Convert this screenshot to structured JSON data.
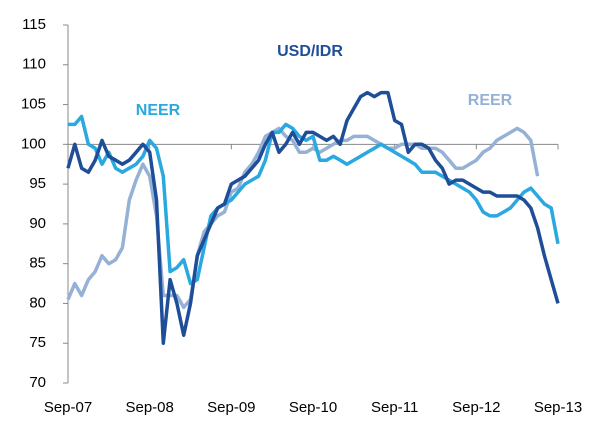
{
  "chart_data": {
    "type": "line",
    "categories": [
      "Sep-07",
      null,
      null,
      null,
      null,
      null,
      null,
      null,
      null,
      null,
      null,
      null,
      "Sep-08",
      null,
      null,
      null,
      null,
      null,
      null,
      null,
      null,
      null,
      null,
      null,
      "Sep-09",
      null,
      null,
      null,
      null,
      null,
      null,
      null,
      null,
      null,
      null,
      null,
      "Sep-10",
      null,
      null,
      null,
      null,
      null,
      null,
      null,
      null,
      null,
      null,
      null,
      "Sep-11",
      null,
      null,
      null,
      null,
      null,
      null,
      null,
      null,
      null,
      null,
      null,
      "Sep-12",
      null,
      null,
      null,
      null,
      null,
      null,
      null,
      null,
      null,
      null,
      null,
      "Sep-13"
    ],
    "series": [
      {
        "name": "USD/IDR",
        "color": "#1f4e99",
        "values": [
          97,
          100,
          97,
          96.5,
          98,
          100.5,
          98.5,
          98,
          97.5,
          98,
          99,
          100,
          99,
          93,
          75,
          83,
          80,
          76,
          80,
          86,
          88,
          90,
          92,
          92.5,
          95,
          95.5,
          96,
          97,
          98,
          100,
          101.5,
          99,
          100,
          101.5,
          100,
          101.5,
          101.5,
          101,
          100.5,
          101,
          100,
          103,
          104.5,
          106,
          106.5,
          106,
          106.5,
          106.5,
          103,
          102.5,
          99,
          100,
          100,
          99.5,
          98,
          97,
          95,
          95.5,
          95.5,
          95,
          94.5,
          94,
          94,
          93.5,
          93.5,
          93.5,
          93.5,
          93,
          92,
          89.5,
          86,
          83,
          80
        ]
      },
      {
        "name": "NEER",
        "color": "#2aa8e0",
        "values": [
          102.5,
          102.5,
          103.5,
          100,
          99.5,
          97.5,
          99,
          97,
          96.5,
          97,
          97.5,
          98.5,
          100.5,
          99.5,
          96,
          84,
          84.5,
          85.5,
          82.5,
          83,
          87,
          91,
          92,
          92.5,
          93,
          94,
          95,
          95.5,
          96,
          98,
          101.5,
          101.5,
          102.5,
          102,
          101,
          100.5,
          101,
          98,
          98,
          98.5,
          98,
          97.5,
          98,
          98.5,
          99,
          99.5,
          100,
          99.5,
          99,
          98.5,
          98,
          97.5,
          96.5,
          96.5,
          96.5,
          96,
          95.5,
          95,
          94.5,
          94,
          93,
          91.5,
          91,
          91,
          91.5,
          92,
          93,
          94,
          94.5,
          93.5,
          92.5,
          92,
          87.5
        ]
      },
      {
        "name": "REER",
        "color": "#95b1d6",
        "values": [
          80.5,
          82.5,
          81,
          83,
          84,
          86,
          85,
          85.5,
          87,
          93,
          95.5,
          97.5,
          96,
          91,
          81,
          81,
          81,
          79.5,
          80.5,
          86,
          89,
          90,
          91,
          91.5,
          94,
          94.5,
          96.5,
          97.5,
          99,
          101,
          101.5,
          102,
          101,
          100.5,
          99,
          99,
          99.5,
          99,
          99.5,
          100,
          100.5,
          100.5,
          101,
          101,
          101,
          100.5,
          100,
          99.5,
          99.5,
          100,
          100,
          100,
          99.5,
          99.5,
          99.5,
          99,
          98,
          97,
          97,
          97.5,
          98,
          99,
          99.5,
          100.5,
          101,
          101.5,
          102,
          101.5,
          100.5,
          96,
          null,
          null,
          null
        ]
      }
    ],
    "ylim": [
      70,
      115
    ],
    "yticks": [
      70,
      75,
      80,
      85,
      90,
      95,
      100,
      105,
      110,
      115
    ],
    "x_axis_crossing": 100
  }
}
